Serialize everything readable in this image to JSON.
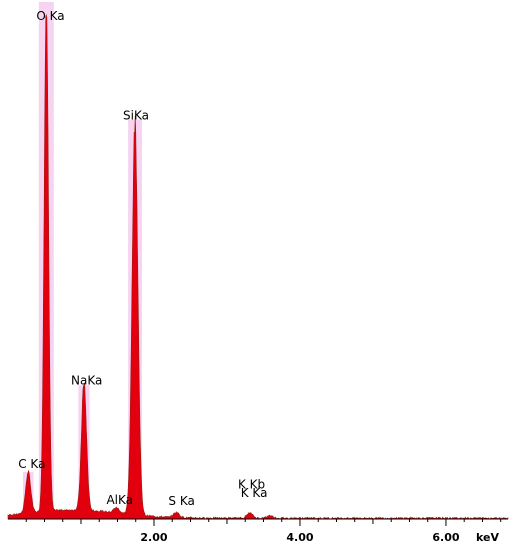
{
  "chart_data": {
    "type": "area",
    "title": "",
    "xlabel": "",
    "ylabel": "",
    "x_unit": "keV",
    "xlim": [
      0.0,
      6.85
    ],
    "ylim": [
      0,
      100
    ],
    "x_ticks": [
      {
        "value": 2.0,
        "label": "2.00"
      },
      {
        "value": 4.0,
        "label": "4.00"
      },
      {
        "value": 6.0,
        "label": "6.00"
      }
    ],
    "unit_label": "keV",
    "grid": false,
    "colors": {
      "fill": "#e2000f",
      "edge": "#9c1a10",
      "halo": "#f3c6ec",
      "axis": "#000000"
    },
    "series": [
      {
        "peaks": [
          {
            "label": "C Ka",
            "energy": 0.277,
            "height": 8,
            "width": 0.035
          },
          {
            "label": "O Ka",
            "energy": 0.525,
            "height": 100,
            "width": 0.03
          },
          {
            "label": "NaKa",
            "energy": 1.041,
            "height": 25,
            "width": 0.035
          },
          {
            "label": "AlKa",
            "energy": 1.486,
            "height": 1,
            "width": 0.04
          },
          {
            "label": "SiKa",
            "energy": 1.74,
            "height": 77,
            "width": 0.04
          },
          {
            "label": "S Ka",
            "energy": 2.307,
            "height": 1,
            "width": 0.04
          },
          {
            "label": "K Ka",
            "energy": 3.312,
            "height": 1,
            "width": 0.04
          },
          {
            "label": "K Kb",
            "energy": 3.589,
            "height": 0.5,
            "width": 0.04
          }
        ]
      }
    ]
  }
}
